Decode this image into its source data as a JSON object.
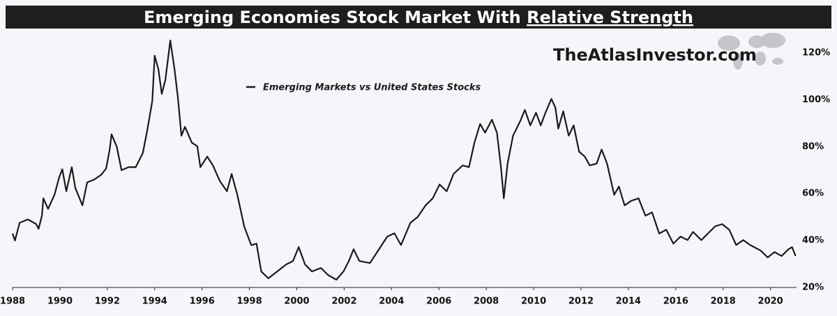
{
  "chart_data": {
    "type": "line",
    "title": "Emerging Economies Stock Market With",
    "title_underlined": "Relative Strength",
    "watermark": "TheAtlasInvestor.com",
    "x": [
      1988.0,
      1988.1,
      1988.3,
      1988.65,
      1989.0,
      1989.1,
      1989.24,
      1989.3,
      1989.5,
      1989.77,
      1989.97,
      1990.1,
      1990.27,
      1990.5,
      1990.65,
      1990.95,
      1991.15,
      1991.45,
      1991.74,
      1991.95,
      1992.1,
      1992.18,
      1992.4,
      1992.6,
      1992.9,
      1993.2,
      1993.5,
      1993.7,
      1993.9,
      1994.0,
      1994.16,
      1994.3,
      1994.45,
      1994.66,
      1994.84,
      1994.98,
      1995.13,
      1995.28,
      1995.57,
      1995.8,
      1995.93,
      1996.22,
      1996.46,
      1996.75,
      1997.05,
      1997.25,
      1997.49,
      1997.78,
      1998.08,
      1998.3,
      1998.5,
      1998.8,
      1999.17,
      1999.55,
      1999.84,
      2000.08,
      2000.35,
      2000.64,
      2001.02,
      2001.32,
      2001.67,
      2001.97,
      2002.2,
      2002.4,
      2002.64,
      2003.09,
      2003.53,
      2003.82,
      2004.12,
      2004.4,
      2004.8,
      2005.1,
      2005.44,
      2005.74,
      2006.03,
      2006.33,
      2006.62,
      2007.0,
      2007.27,
      2007.5,
      2007.74,
      2007.95,
      2008.24,
      2008.45,
      2008.62,
      2008.74,
      2008.9,
      2009.13,
      2009.42,
      2009.63,
      2009.86,
      2010.1,
      2010.3,
      2010.5,
      2010.75,
      2010.92,
      2011.04,
      2011.25,
      2011.48,
      2011.69,
      2011.92,
      2012.16,
      2012.37,
      2012.66,
      2012.87,
      2013.1,
      2013.4,
      2013.6,
      2013.84,
      2014.13,
      2014.43,
      2014.72,
      2015.0,
      2015.3,
      2015.6,
      2015.9,
      2016.2,
      2016.5,
      2016.73,
      2017.08,
      2017.37,
      2017.67,
      2017.96,
      2018.26,
      2018.55,
      2018.85,
      2019.14,
      2019.59,
      2019.88,
      2020.17,
      2020.47,
      2020.76,
      2020.91,
      2021.06
    ],
    "series": [
      {
        "name": "Emerging Markets vs United States Stocks",
        "color": "#1a1a1a",
        "values": [
          43,
          40,
          47.6,
          49,
          47,
          45,
          50.6,
          58,
          53.5,
          59.5,
          67,
          70.4,
          61,
          71.3,
          62.4,
          55,
          64.8,
          66,
          68,
          70.7,
          78.8,
          85.3,
          80,
          70,
          71.3,
          71.3,
          77.3,
          87.7,
          99.5,
          118.8,
          112.9,
          102.5,
          108.4,
          125.3,
          112.9,
          101,
          84.7,
          88.5,
          81.7,
          80.2,
          71.3,
          75.8,
          72,
          65.4,
          61,
          68.4,
          59.5,
          46,
          38,
          38.7,
          26.8,
          23.9,
          26.8,
          29.8,
          31.3,
          37.2,
          29.8,
          26.8,
          28.3,
          25.3,
          23.3,
          26.8,
          31.3,
          36.3,
          31.3,
          30.4,
          37.2,
          41.7,
          43.1,
          38.1,
          47.6,
          50,
          55,
          58,
          63.9,
          61,
          68.4,
          72,
          71.3,
          81.7,
          89.7,
          86,
          91.5,
          86,
          71.3,
          58,
          72.8,
          84.7,
          90.6,
          95.7,
          89.1,
          94.5,
          89.1,
          94.5,
          100.4,
          96.6,
          87.7,
          95.1,
          84.7,
          89.1,
          77.9,
          75.8,
          72,
          72.8,
          78.8,
          72.8,
          59.5,
          63,
          55,
          57,
          58,
          50.6,
          52,
          43,
          44.6,
          38.7,
          41.7,
          40.2,
          43.7,
          40.2,
          43.1,
          46.1,
          47,
          44.6,
          38.1,
          40.2,
          38.1,
          35.7,
          32.8,
          35.1,
          33.4,
          36.3,
          37.2,
          33.4
        ]
      }
    ],
    "xlim": [
      1988,
      2021.1
    ],
    "xticks": [
      1988,
      1990,
      1992,
      1994,
      1996,
      1998,
      2000,
      2002,
      2004,
      2006,
      2008,
      2010,
      2012,
      2014,
      2016,
      2018,
      2020
    ],
    "ylim": [
      20,
      128
    ],
    "yticks": [
      {
        "value": 20,
        "label": "20%"
      },
      {
        "value": 40,
        "label": "40%"
      },
      {
        "value": 60,
        "label": "60%"
      },
      {
        "value": 80,
        "label": "80%"
      },
      {
        "value": 100,
        "label": "100%"
      },
      {
        "value": 120,
        "label": "120%"
      }
    ],
    "grid": false
  }
}
